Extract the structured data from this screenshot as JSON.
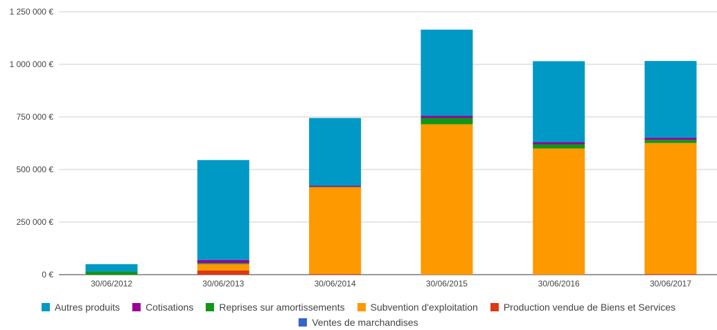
{
  "chart_data": {
    "type": "bar",
    "stacked": true,
    "categories": [
      "30/06/2012",
      "30/06/2013",
      "30/06/2014",
      "30/06/2015",
      "30/06/2016",
      "30/06/2017"
    ],
    "x_dates": [
      "2012-06-30",
      "2013-06-30",
      "2014-06-30",
      "2015-06-30",
      "2016-06-30",
      "2017-06-30"
    ],
    "ylim": [
      0,
      1250000
    ],
    "yticks": [
      "0 €",
      "250 000 €",
      "500 000 €",
      "750 000 €",
      "1 000 000 €",
      "1 250 000 €"
    ],
    "grid": true,
    "legend_position": "bottom",
    "series": [
      {
        "name": "Ventes de marchandises",
        "color": "#3366cc",
        "values": [
          0,
          0,
          0,
          0,
          0,
          0
        ]
      },
      {
        "name": "Production vendue de Biens et Services",
        "color": "#dc3912",
        "values": [
          0,
          20000,
          3000,
          0,
          0,
          3000
        ]
      },
      {
        "name": "Subvention d'exploitation",
        "color": "#ff9900",
        "values": [
          0,
          30000,
          413000,
          715000,
          600000,
          623000
        ]
      },
      {
        "name": "Reprises sur amortissements",
        "color": "#109618",
        "values": [
          15000,
          5000,
          2000,
          30000,
          20000,
          15000
        ]
      },
      {
        "name": "Cotisations",
        "color": "#990099",
        "values": [
          0,
          15000,
          5000,
          10000,
          10000,
          10000
        ]
      },
      {
        "name": "Autres produits",
        "color": "#0099c6",
        "values": [
          35000,
          475000,
          322000,
          410000,
          385000,
          365000
        ]
      }
    ]
  },
  "legend": {
    "row1": [
      "Autres produits",
      "Cotisations",
      "Reprises sur amortissements",
      "Subvention d'exploitation",
      "Production vendue de Biens et Services"
    ],
    "row2": [
      "Ventes de marchandises"
    ]
  }
}
